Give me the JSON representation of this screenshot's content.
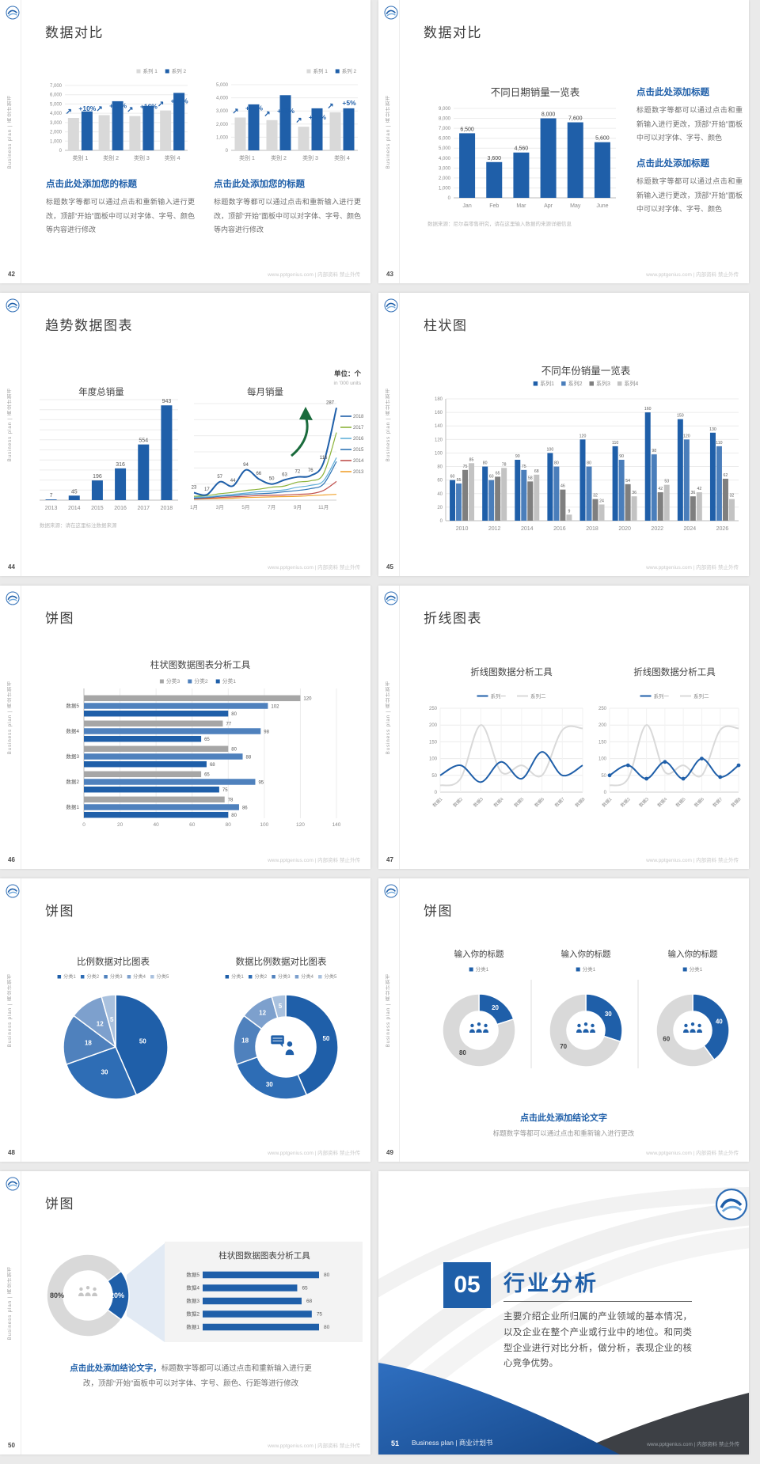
{
  "common": {
    "footer": "www.pptgenius.com | 内部资料 禁止外传",
    "sidebar": "Business plan | 商业计划书"
  },
  "colors": {
    "primary": "#1f5fa9",
    "mid_blue": "#4f81bd",
    "bar_gray": "#d9d9d9",
    "legend_gray": "#a6a6a6",
    "green_arrow": "#1a6b3c"
  },
  "slides": {
    "s42": {
      "page": "42",
      "title": "数据对比",
      "caption_title": "点击此处添加您的标题",
      "caption_body": "标题数字等都可以通过点击和重新输入进行更改，顶部“开始”面板中可以对字体、字号、颜色等内容进行修改",
      "chart_data": [
        {
          "type": "bar",
          "categories": [
            "类别 1",
            "类别 2",
            "类别 3",
            "类别 4"
          ],
          "ylim": [
            0,
            7000
          ],
          "ystep": 1000,
          "series": [
            {
              "name": "系列 1",
              "color": "#d9d9d9",
              "values": [
                3500,
                3800,
                3700,
                4300
              ]
            },
            {
              "name": "系列 2",
              "color": "#1f5fa9",
              "values": [
                4200,
                5300,
                4800,
                6200
              ]
            }
          ],
          "growth": [
            "+10%",
            "+18%",
            "+16%",
            "+22%"
          ]
        },
        {
          "type": "bar",
          "categories": [
            "类别 1",
            "类别 2",
            "类别 3",
            "类别 4"
          ],
          "ylim": [
            0,
            5000
          ],
          "ystep": 1000,
          "series": [
            {
              "name": "系列 1",
              "color": "#d9d9d9",
              "values": [
                2500,
                2300,
                1800,
                2900
              ]
            },
            {
              "name": "系列 2",
              "color": "#1f5fa9",
              "values": [
                3500,
                4200,
                3200,
                3200
              ]
            }
          ],
          "growth": [
            "+25%",
            "+50%",
            "+34%",
            "+5%"
          ]
        }
      ]
    },
    "s43": {
      "page": "43",
      "title": "数据对比",
      "chart_title": "不同日期销量一览表",
      "source": "数据来源：尼尔森零售研究，请在这里输入数据的来源详细信息",
      "blocks": [
        {
          "heading": "点击此处添加标题",
          "body": "标题数字等都可以通过点击和重新输入进行更改，顶部“开始”面板中可以对字体、字号、颜色"
        },
        {
          "heading": "点击此处添加标题",
          "body": "标题数字等都可以通过点击和重新输入进行更改，顶部“开始”面板中可以对字体、字号、颜色"
        }
      ],
      "chart_data": {
        "type": "bar",
        "categories": [
          "Jan",
          "Feb",
          "Mar",
          "Apr",
          "May",
          "June"
        ],
        "values": [
          6500,
          3600,
          4560,
          8000,
          7600,
          5600
        ],
        "ylim": [
          0,
          9000
        ],
        "ystep": 1000,
        "color": "#1f5fa9"
      }
    },
    "s44": {
      "page": "44",
      "title": "趋势数据图表",
      "unit_cn": "单位：个",
      "unit_en": "in '000 units",
      "left_title": "年度总销量",
      "right_title": "每月销量",
      "source": "数据来源：请在这里标注数据来源",
      "chart_data": [
        {
          "type": "bar",
          "title": "年度总销量",
          "categories": [
            "2013",
            "2014",
            "2015",
            "2016",
            "2017",
            "2018"
          ],
          "values": [
            7,
            45,
            196,
            316,
            554,
            943
          ],
          "ylim": [
            0,
            1000
          ],
          "color": "#1f5fa9"
        },
        {
          "type": "line",
          "title": "每月销量",
          "x": [
            "1月",
            "3月",
            "5月",
            "7月",
            "9月",
            "11月"
          ],
          "ylim": [
            0,
            300
          ],
          "series": [
            {
              "name": "2018",
              "color": "#1f5fa9",
              "values": [
                23,
                17,
                57,
                44,
                94,
                66,
                50,
                63,
                72,
                76,
                116,
                287
              ],
              "labeled": true
            },
            {
              "name": "2017",
              "color": "#8cb33a",
              "values": [
                12,
                14,
                20,
                24,
                30,
                34,
                40,
                44,
                56,
                60,
                82,
                210
              ]
            },
            {
              "name": "2016",
              "color": "#62b0d9",
              "values": [
                9,
                10,
                14,
                18,
                22,
                26,
                28,
                32,
                40,
                46,
                60,
                132
              ]
            },
            {
              "name": "2015",
              "color": "#2e75b6",
              "values": [
                6,
                8,
                12,
                14,
                18,
                20,
                22,
                26,
                30,
                36,
                50,
                120
              ]
            },
            {
              "name": "2014",
              "color": "#c0504d",
              "values": [
                4,
                6,
                8,
                10,
                12,
                14,
                15,
                16,
                18,
                20,
                30,
                58
              ]
            },
            {
              "name": "2013",
              "color": "#f0a22e",
              "values": [
                3,
                4,
                5,
                6,
                8,
                9,
                10,
                11,
                12,
                14,
                16,
                18
              ]
            }
          ]
        }
      ]
    },
    "s45": {
      "page": "45",
      "title": "柱状图",
      "chart_title": "不同年份销量一览表",
      "chart_data": {
        "type": "bar",
        "categories": [
          "2010",
          "2012",
          "2014",
          "2016",
          "2018",
          "2020",
          "2022",
          "2024",
          "2026"
        ],
        "ylim": [
          0,
          180
        ],
        "ystep": 20,
        "series": [
          {
            "name": "系列1",
            "color": "#1f5fa9",
            "values": [
              60,
              80,
              90,
              100,
              120,
              110,
              160,
              150,
              130
            ]
          },
          {
            "name": "系列2",
            "color": "#4a7ebb",
            "values": [
              55,
              60,
              75,
              80,
              80,
              90,
              98,
              120,
              110
            ]
          },
          {
            "name": "系列3",
            "color": "#7f7f7f",
            "values": [
              75,
              65,
              58,
              46,
              32,
              54,
              42,
              36,
              62
            ]
          },
          {
            "name": "系列4",
            "color": "#c3c3c3",
            "values": [
              85,
              78,
              68,
              9,
              24,
              36,
              53,
              42,
              32
            ]
          }
        ]
      }
    },
    "s46": {
      "page": "46",
      "title": "饼图",
      "chart_title": "柱状图数据图表分析工具",
      "chart_data": {
        "type": "bar-horizontal",
        "categories": [
          "数据5",
          "数据4",
          "数据3",
          "数据2",
          "数据1"
        ],
        "xlim": [
          0,
          140
        ],
        "xstep": 20,
        "series": [
          {
            "name": "分类3",
            "color": "#a6a6a6",
            "values": [
              120,
              77,
              80,
              65,
              78
            ]
          },
          {
            "name": "分类2",
            "color": "#4f81bd",
            "values": [
              102,
              98,
              88,
              95,
              86
            ]
          },
          {
            "name": "分类1",
            "color": "#1f5fa9",
            "values": [
              80,
              65,
              68,
              75,
              80
            ]
          }
        ]
      }
    },
    "s47": {
      "page": "47",
      "title": "折线图表",
      "chart_data": [
        {
          "type": "line",
          "title": "折线图数据分析工具",
          "x": [
            "数据1",
            "数据2",
            "数据3",
            "数据4",
            "数据5",
            "数据6",
            "数据7",
            "数据8"
          ],
          "ylim": [
            0,
            250
          ],
          "ystep": 50,
          "series": [
            {
              "name": "系列一",
              "color": "#1f5fa9",
              "values": [
                50,
                80,
                30,
                90,
                40,
                120,
                50,
                80
              ]
            },
            {
              "name": "系列二",
              "color": "#d9d9d9",
              "values": [
                20,
                40,
                200,
                60,
                80,
                50,
                185,
                190
              ]
            }
          ]
        },
        {
          "type": "line",
          "title": "折线图数据分析工具",
          "x": [
            "数据1",
            "数据2",
            "数据3",
            "数据4",
            "数据5",
            "数据6",
            "数据7",
            "数据8"
          ],
          "ylim": [
            0,
            250
          ],
          "ystep": 50,
          "markers": true,
          "series": [
            {
              "name": "系列一",
              "color": "#1f5fa9",
              "values": [
                50,
                80,
                40,
                90,
                40,
                100,
                45,
                80
              ]
            },
            {
              "name": "系列二",
              "color": "#d9d9d9",
              "values": [
                20,
                40,
                200,
                60,
                80,
                50,
                185,
                190
              ]
            }
          ]
        }
      ]
    },
    "s48": {
      "page": "48",
      "title": "饼图",
      "chart_data": [
        {
          "type": "pie",
          "title": "比例数据对比图表",
          "labels": [
            "分类1",
            "分类2",
            "分类3",
            "分类4",
            "分类5"
          ],
          "values": [
            50,
            30,
            18,
            12,
            5
          ],
          "colors": [
            "#1f5fa9",
            "#2e6db5",
            "#4f81bd",
            "#7da0cd",
            "#a9c1de"
          ]
        },
        {
          "type": "donut",
          "title": "数据比例数据对比图表",
          "labels": [
            "分类1",
            "分类2",
            "分类3",
            "分类4",
            "分类5"
          ],
          "values": [
            50,
            30,
            18,
            12,
            5
          ],
          "colors": [
            "#1f5fa9",
            "#2e6db5",
            "#4f81bd",
            "#7da0cd",
            "#a9c1de"
          ],
          "center_icon": "person-speech-icon"
        }
      ]
    },
    "s49": {
      "page": "49",
      "title": "饼图",
      "conclusion": "点击此处添加结论文字",
      "conclusion_sub": "标题数字等都可以通过点击和重新输入进行更改",
      "chart_data": [
        {
          "type": "donut",
          "title": "输入你的标题",
          "legend": "分类1",
          "values": [
            20,
            80
          ],
          "colors": [
            "#1f5fa9",
            "#d9d9d9"
          ],
          "center_icon": "people-icon"
        },
        {
          "type": "donut",
          "title": "输入你的标题",
          "legend": "分类1",
          "values": [
            30,
            70
          ],
          "colors": [
            "#1f5fa9",
            "#d9d9d9"
          ],
          "center_icon": "people-icon"
        },
        {
          "type": "donut",
          "title": "输入你的标题",
          "legend": "分类1",
          "values": [
            40,
            60
          ],
          "colors": [
            "#1f5fa9",
            "#d9d9d9"
          ],
          "center_icon": "people-icon"
        }
      ]
    },
    "s50": {
      "page": "50",
      "title": "饼图",
      "panel_title": "柱状图数据图表分析工具",
      "conclusion_blue": "点击此处添加结论文字，",
      "conclusion_gray": "标题数字等都可以通过点击和重新输入进行更改，顶部“开始”面板中可以对字体、字号、颜色、行距等进行修改",
      "chart_data": [
        {
          "type": "donut",
          "values": [
            20,
            80
          ],
          "labels": [
            "20%",
            "80%"
          ],
          "colors": [
            "#1f5fa9",
            "#d9d9d9"
          ],
          "center_icon": "people-icon"
        },
        {
          "type": "bar-horizontal",
          "title": "柱状图数据图表分析工具",
          "categories": [
            "数据5",
            "数据4",
            "数据3",
            "数据2",
            "数据1"
          ],
          "values": [
            80,
            65,
            68,
            75,
            80
          ],
          "xlim": [
            0,
            80
          ],
          "color": "#1f5fa9"
        }
      ]
    },
    "s51": {
      "page": "51",
      "number": "05",
      "title": "行业分析",
      "body": "主要介绍企业所归属的产业领域的基本情况，以及企业在整个产业或行业中的地位。和同类型企业进行对比分析，做分析，表现企业的核心竞争优势。",
      "bottom_label": "Business plan | 商业计划书"
    }
  }
}
